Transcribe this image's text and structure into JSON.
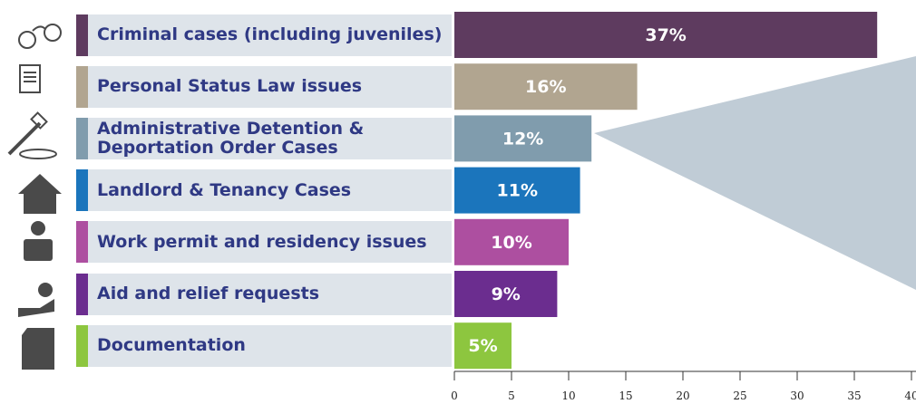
{
  "chart_data": {
    "type": "bar",
    "orientation": "horizontal",
    "categories": [
      "Criminal cases (including juveniles)",
      "Personal Status Law issues",
      "Administrative Detention &\nDeportation Order Cases",
      "Landlord & Tenancy Cases",
      "Work permit and residency issues",
      "Aid and relief requests",
      "Documentation"
    ],
    "values": [
      37,
      16,
      12,
      11,
      10,
      9,
      5
    ],
    "value_labels": [
      "37%",
      "16%",
      "12%",
      "11%",
      "10%",
      "9%",
      "5%"
    ],
    "colors": [
      "#5e3b5f",
      "#b1a590",
      "#809cad",
      "#1b75bc",
      "#ad4fa0",
      "#6b2d8f",
      "#8dc63f"
    ],
    "xlim": [
      0,
      40
    ],
    "xticks": [
      0,
      5,
      10,
      15,
      20,
      25,
      30,
      35,
      40
    ]
  }
}
